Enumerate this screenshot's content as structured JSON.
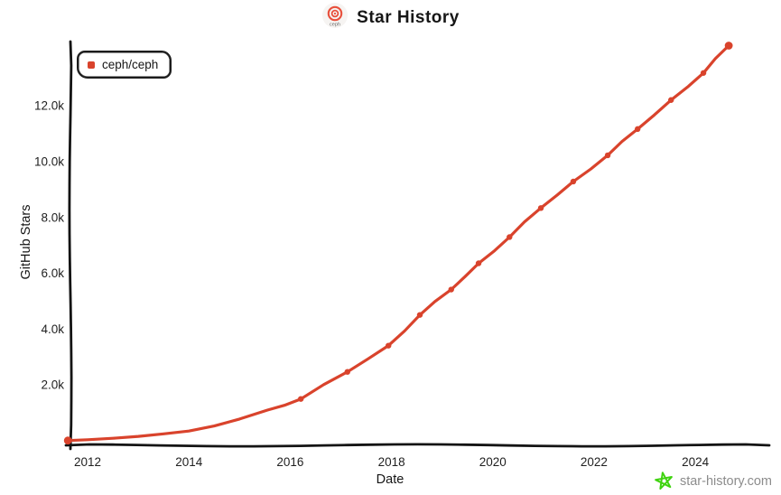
{
  "header": {
    "title": "Star History",
    "logo_text": "ceph"
  },
  "legend": {
    "items": [
      {
        "label": "ceph/ceph",
        "color": "#d9432c"
      }
    ]
  },
  "watermark": {
    "text": "star-history.com",
    "icon": "star-icon",
    "icon_color": "#3fd30f",
    "text_color": "#8c8c8c"
  },
  "colors": {
    "accent": "#d9432c",
    "axis": "#141414",
    "tick_text": "#1f1f1f",
    "background": "#ffffff"
  },
  "chart_data": {
    "type": "line",
    "title": "Star History",
    "xlabel": "Date",
    "ylabel": "GitHub Stars",
    "grid": false,
    "legend_position": "top-left",
    "xlim": [
      2011.66,
      2025.46
    ],
    "ylim": [
      0,
      14500
    ],
    "x_ticks": [
      {
        "v": 2012,
        "label": "2012"
      },
      {
        "v": 2014,
        "label": "2014"
      },
      {
        "v": 2016,
        "label": "2016"
      },
      {
        "v": 2018,
        "label": "2018"
      },
      {
        "v": 2020,
        "label": "2020"
      },
      {
        "v": 2022,
        "label": "2022"
      },
      {
        "v": 2024,
        "label": "2024"
      }
    ],
    "y_ticks": [
      {
        "v": 2000,
        "label": "2.0k"
      },
      {
        "v": 4000,
        "label": "4.0k"
      },
      {
        "v": 6000,
        "label": "6.0k"
      },
      {
        "v": 8000,
        "label": "8.0k"
      },
      {
        "v": 10000,
        "label": "10.0k"
      },
      {
        "v": 12000,
        "label": "12.0k"
      }
    ],
    "series": [
      {
        "name": "ceph/ceph",
        "color": "#d9432c",
        "points": [
          {
            "x": 2011.61,
            "y": 10,
            "marker": true
          },
          {
            "x": 2012.0,
            "y": 40,
            "marker": false
          },
          {
            "x": 2012.5,
            "y": 90,
            "marker": false
          },
          {
            "x": 2013.0,
            "y": 160,
            "marker": false
          },
          {
            "x": 2013.5,
            "y": 250,
            "marker": false
          },
          {
            "x": 2014.0,
            "y": 350,
            "marker": false
          },
          {
            "x": 2014.5,
            "y": 530,
            "marker": false
          },
          {
            "x": 2015.0,
            "y": 780,
            "marker": false
          },
          {
            "x": 2015.55,
            "y": 1100,
            "marker": false
          },
          {
            "x": 2016.21,
            "y": 1500,
            "marker": true
          },
          {
            "x": 2017.13,
            "y": 2470,
            "marker": true
          },
          {
            "x": 2017.94,
            "y": 3410,
            "marker": true
          },
          {
            "x": 2018.56,
            "y": 4510,
            "marker": true
          },
          {
            "x": 2019.18,
            "y": 5420,
            "marker": true
          },
          {
            "x": 2019.72,
            "y": 6360,
            "marker": true
          },
          {
            "x": 2020.33,
            "y": 7300,
            "marker": true
          },
          {
            "x": 2020.95,
            "y": 8340,
            "marker": true
          },
          {
            "x": 2021.59,
            "y": 9290,
            "marker": true
          },
          {
            "x": 2022.27,
            "y": 10230,
            "marker": true
          },
          {
            "x": 2022.86,
            "y": 11170,
            "marker": true
          },
          {
            "x": 2023.52,
            "y": 12210,
            "marker": true
          },
          {
            "x": 2024.16,
            "y": 13180,
            "marker": true
          },
          {
            "x": 2024.66,
            "y": 14160,
            "marker": true
          }
        ]
      }
    ]
  }
}
